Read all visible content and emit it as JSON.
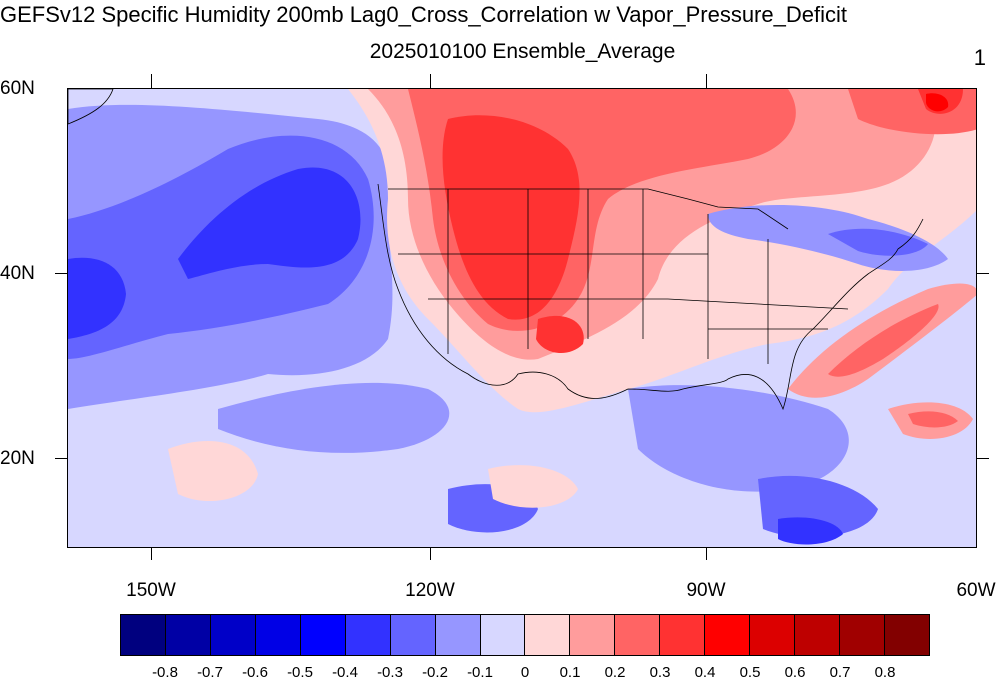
{
  "title": "GEFSv12 Specific Humidity 200mb Lag0_Cross_Correlation w Vapor_Pressure_Deficit",
  "subtitle": "2025010100 Ensemble_Average",
  "corner_label": "1",
  "axes": {
    "y_labels": [
      "60N",
      "40N",
      "20N"
    ],
    "x_labels": [
      "150W",
      "120W",
      "90W",
      "60W"
    ]
  },
  "colorbar": {
    "colors": [
      "#00007f",
      "#0000a5",
      "#0000c8",
      "#0000e6",
      "#0000ff",
      "#3232ff",
      "#6464ff",
      "#9696ff",
      "#d7d7ff",
      "#ffd7d7",
      "#ff9c9c",
      "#ff6464",
      "#ff3232",
      "#ff0000",
      "#dc0000",
      "#be0000",
      "#a00000",
      "#820000"
    ],
    "labels": [
      "-0.8",
      "-0.7",
      "-0.6",
      "-0.5",
      "-0.4",
      "-0.3",
      "-0.2",
      "-0.1",
      "0",
      "0.1",
      "0.2",
      "0.3",
      "0.4",
      "0.5",
      "0.6",
      "0.7",
      "0.8"
    ]
  }
}
